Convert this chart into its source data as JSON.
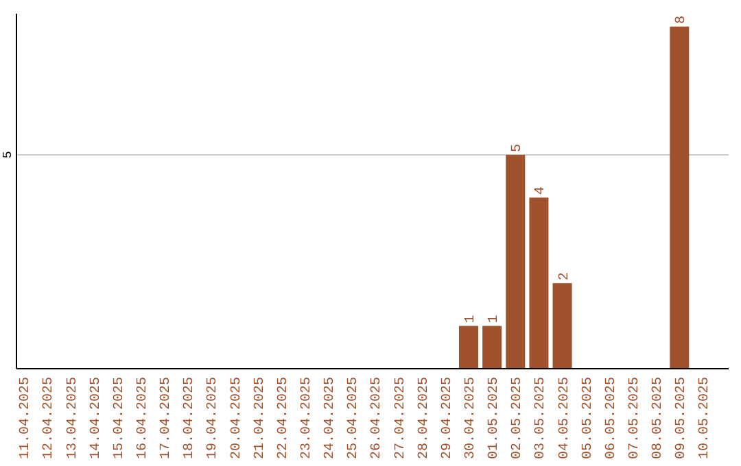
{
  "chart_data": {
    "type": "bar",
    "categories": [
      "11.04.2025",
      "12.04.2025",
      "13.04.2025",
      "14.04.2025",
      "15.04.2025",
      "16.04.2025",
      "17.04.2025",
      "18.04.2025",
      "19.04.2025",
      "20.04.2025",
      "21.04.2025",
      "22.04.2025",
      "23.04.2025",
      "24.04.2025",
      "25.04.2025",
      "26.04.2025",
      "27.04.2025",
      "28.04.2025",
      "29.04.2025",
      "30.04.2025",
      "01.05.2025",
      "02.05.2025",
      "03.05.2025",
      "04.05.2025",
      "05.05.2025",
      "06.05.2025",
      "07.05.2025",
      "08.05.2025",
      "09.05.2025",
      "10.05.2025"
    ],
    "values": [
      null,
      null,
      null,
      null,
      null,
      null,
      null,
      null,
      null,
      null,
      null,
      null,
      null,
      null,
      null,
      null,
      null,
      null,
      null,
      1,
      1,
      5,
      4,
      2,
      null,
      null,
      null,
      null,
      8,
      null
    ],
    "value_labels": [
      null,
      null,
      null,
      null,
      null,
      null,
      null,
      null,
      null,
      null,
      null,
      null,
      null,
      null,
      null,
      null,
      null,
      null,
      null,
      "1",
      "1",
      "5",
      "4",
      "2",
      null,
      null,
      null,
      null,
      "8",
      null
    ],
    "color": "#a0522d",
    "ylim": [
      0,
      8.3
    ],
    "ref_lines": [
      {
        "axis": "y",
        "value": 5,
        "label": "5",
        "color": "#cccccc"
      }
    ]
  }
}
